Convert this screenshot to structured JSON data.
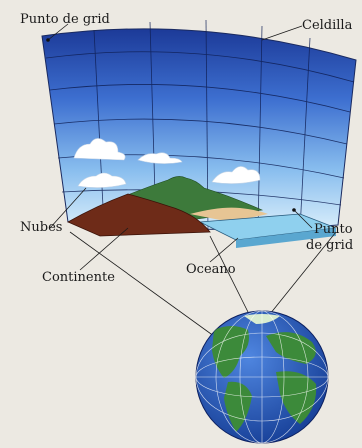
{
  "labels": {
    "grid_point_top": "Punto de grid",
    "cell": "Celdilla",
    "clouds": "Nubes",
    "continent": "Continente",
    "ocean": "Oceano",
    "grid_point_right_line1": "Punto",
    "grid_point_right_line2": "de grid"
  },
  "colors": {
    "background": "#ece9e2",
    "sky_top": "#1f3f9c",
    "sky_bottom": "#d8ecfa",
    "continent": "#6b2a1a",
    "mountain": "#3c7a3a",
    "ocean": "#8fd0ee",
    "globe_ocean": "#1f4fae",
    "globe_land": "#3c8a3a"
  }
}
